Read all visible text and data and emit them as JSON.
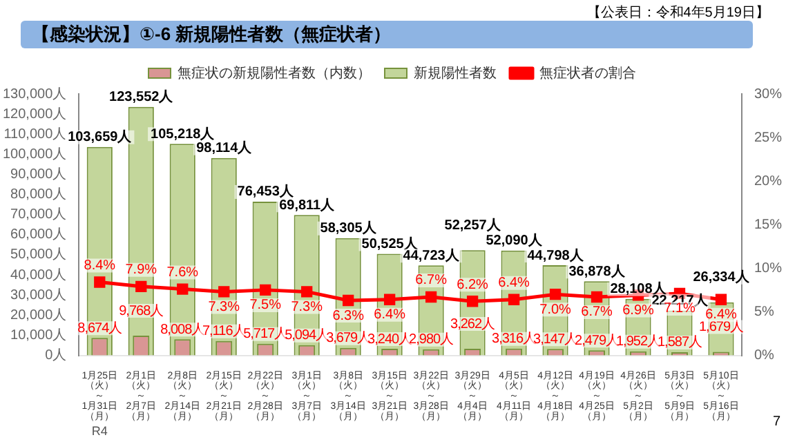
{
  "chart_data": {
    "type": "bar",
    "title": "【感染状況】①-6 新規陽性者数（無症状者）",
    "annotations": [
      "【公表日：令和4年5月19日】",
      "R4",
      "7"
    ],
    "categories": [
      "1月25日（火）～1月31日（月）",
      "2月1日（火）～2月7日（月）",
      "2月8日（火）～2月14日（月）",
      "2月15日（火）～2月21日（月）",
      "2月22日（火）～2月28日（月）",
      "3月1日（火）～3月7日（月）",
      "3月8日（火）～3月14日（月）",
      "3月15日（火）～3月21日（月）",
      "3月22日（火）～3月28日（月）",
      "3月29日（火）～4月4日（月）",
      "4月5日（火）～4月11日（月）",
      "4月12日（火）～4月18日（月）",
      "4月19日（火）～4月25日（月）",
      "4月26日（火）～5月2日（月）",
      "5月3日（火）～5月9日（月）",
      "5月10日（火）～5月16日（月）"
    ],
    "series": [
      {
        "name": "無症状の新規陽性者数（内数）",
        "color": "#d99694",
        "values": [
          8674,
          9768,
          8008,
          7116,
          5717,
          5094,
          3679,
          3240,
          2980,
          3262,
          3316,
          3147,
          2479,
          1952,
          1587,
          1679
        ],
        "value_labels": [
          "8,674人",
          "9,768人",
          "8,008人",
          "7,116人",
          "5,717人",
          "5,094人",
          "3,679人",
          "3,240人",
          "2,980人",
          "3,262人",
          "3,316人",
          "3,147人",
          "2,479人",
          "1,952人",
          "1,587人",
          "1,679人"
        ]
      },
      {
        "name": "新規陽性者数",
        "color": "#c3d69b",
        "values": [
          103659,
          123552,
          105218,
          98114,
          76453,
          69811,
          58305,
          50525,
          44723,
          52257,
          52090,
          44798,
          36878,
          28108,
          22217,
          26334
        ],
        "value_labels": [
          "103,659人",
          "123,552人",
          "105,218人",
          "98,114人",
          "76,453人",
          "69,811人",
          "58,305人",
          "50,525人",
          "44,723人",
          "52,257人",
          "52,090人",
          "44,798人",
          "36,878人",
          "28,108人",
          "22,217人",
          "26,334人"
        ]
      },
      {
        "name": "無症状者の割合",
        "type": "line",
        "axis": "y2",
        "color": "#ff0000",
        "values": [
          8.4,
          7.9,
          7.6,
          7.3,
          7.5,
          7.3,
          6.3,
          6.4,
          6.7,
          6.2,
          6.4,
          7.0,
          6.7,
          6.9,
          7.1,
          6.4
        ],
        "value_labels": [
          "8.4%",
          "7.9%",
          "7.6%",
          "7.3%",
          "7.5%",
          "7.3%",
          "6.3%",
          "6.4%",
          "6.7%",
          "6.2%",
          "6.4%",
          "7.0%",
          "6.7%",
          "6.9%",
          "7.1%",
          "6.4%"
        ]
      }
    ],
    "ylim": [
      0,
      130000
    ],
    "yticks": [
      {
        "value": 0,
        "label": "0人"
      },
      {
        "value": 10000,
        "label": "10,000人"
      },
      {
        "value": 20000,
        "label": "20,000人"
      },
      {
        "value": 30000,
        "label": "30,000人"
      },
      {
        "value": 40000,
        "label": "40,000人"
      },
      {
        "value": 50000,
        "label": "50,000人"
      },
      {
        "value": 60000,
        "label": "60,000人"
      },
      {
        "value": 70000,
        "label": "70,000人"
      },
      {
        "value": 80000,
        "label": "80,000人"
      },
      {
        "value": 90000,
        "label": "90,000人"
      },
      {
        "value": 100000,
        "label": "100,000人"
      },
      {
        "value": 110000,
        "label": "110,000人"
      },
      {
        "value": 120000,
        "label": "120,000人"
      },
      {
        "value": 130000,
        "label": "130,000人"
      }
    ],
    "y2lim": [
      0,
      30
    ],
    "y2ticks": [
      {
        "value": 0,
        "label": "0%"
      },
      {
        "value": 5,
        "label": "5%"
      },
      {
        "value": 10,
        "label": "10%"
      },
      {
        "value": 15,
        "label": "15%"
      },
      {
        "value": 20,
        "label": "20%"
      },
      {
        "value": 25,
        "label": "25%"
      },
      {
        "value": 30,
        "label": "30%"
      }
    ],
    "grid": false,
    "legend": "top",
    "marker": "square",
    "line_style": "solid"
  }
}
